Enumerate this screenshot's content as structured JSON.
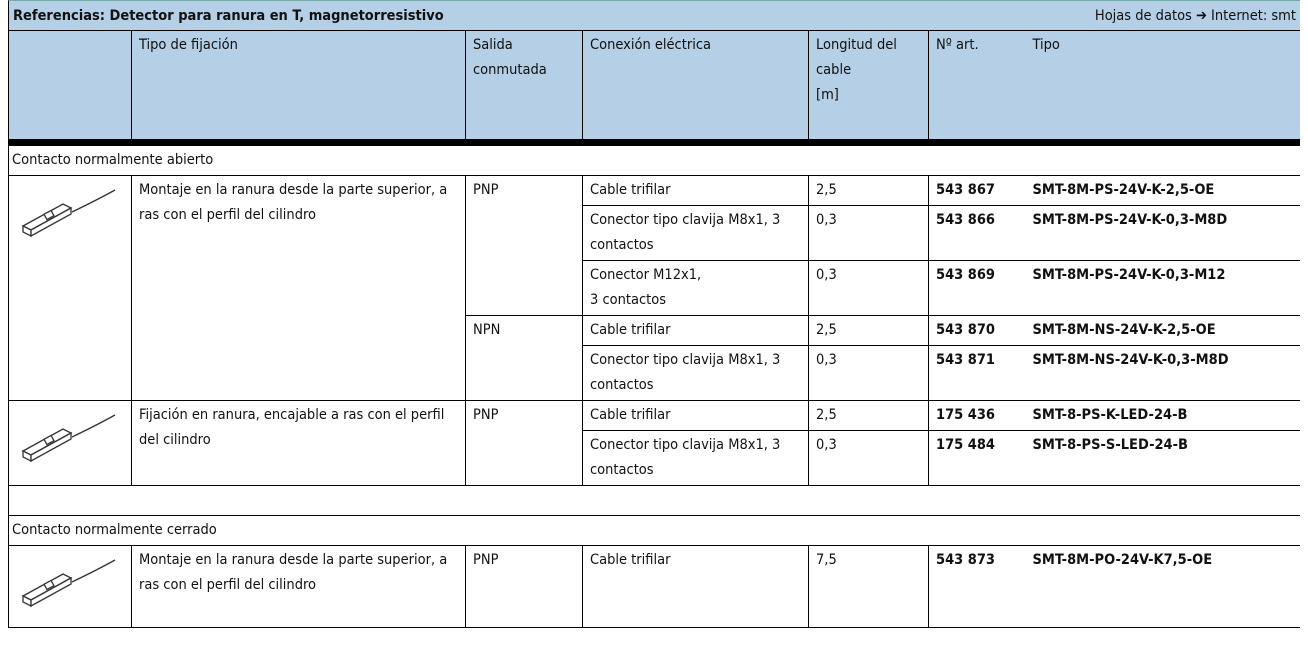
{
  "header": {
    "title": "Referencias: Detector para ranura en T, magnetorresistivo",
    "note": "Hojas de datos ➔ Internet: smt"
  },
  "columns": [
    "Tipo de fijación",
    "Salida\nconmutada",
    "Conexión eléctrica",
    "Longitud del\ncable\n[m]",
    "Nº art.",
    "Tipo"
  ],
  "sections": [
    {
      "label": "Contacto normalmente abierto",
      "groups": [
        {
          "mounting": "Montaje en la ranura desde la parte superior, a ras con el perfil del cilindro",
          "outputs": [
            {
              "output": "PNP",
              "rows": [
                {
                  "connection": "Cable trifilar",
                  "length": "2,5",
                  "part_no": "543 867",
                  "type": "SMT-8M-PS-24V-K-2,5-OE"
                },
                {
                  "connection": "Conector tipo clavija M8x1, 3 contactos",
                  "length": "0,3",
                  "part_no": "543 866",
                  "type": "SMT-8M-PS-24V-K-0,3-M8D"
                },
                {
                  "connection": "Conector M12x1,\n3 contactos",
                  "length": "0,3",
                  "part_no": "543 869",
                  "type": "SMT-8M-PS-24V-K-0,3-M12"
                }
              ]
            },
            {
              "output": "NPN",
              "rows": [
                {
                  "connection": "Cable trifilar",
                  "length": "2,5",
                  "part_no": "543 870",
                  "type": "SMT-8M-NS-24V-K-2,5-OE"
                },
                {
                  "connection": "Conector tipo clavija M8x1, 3 contactos",
                  "length": "0,3",
                  "part_no": "543 871",
                  "type": "SMT-8M-NS-24V-K-0,3-M8D"
                }
              ]
            }
          ]
        },
        {
          "mounting": "Fijación en ranura, encajable a ras con el perfil del cilindro",
          "outputs": [
            {
              "output": "PNP",
              "rows": [
                {
                  "connection": "Cable trifilar",
                  "length": "2,5",
                  "part_no": "175 436",
                  "type": "SMT-8-PS-K-LED-24-B"
                },
                {
                  "connection": "Conector tipo clavija M8x1, 3 contactos",
                  "length": "0,3",
                  "part_no": "175 484",
                  "type": "SMT-8-PS-S-LED-24-B"
                }
              ]
            }
          ]
        }
      ]
    },
    {
      "label": "Contacto normalmente cerrado",
      "groups": [
        {
          "mounting": "Montaje en la ranura desde la parte superior, a ras con el perfil del cilindro",
          "outputs": [
            {
              "output": "PNP",
              "rows": [
                {
                  "connection": "Cable trifilar",
                  "length": "7,5",
                  "part_no": "543 873",
                  "type": "SMT-8M-PO-24V-K7,5-OE"
                }
              ]
            }
          ]
        }
      ]
    }
  ]
}
